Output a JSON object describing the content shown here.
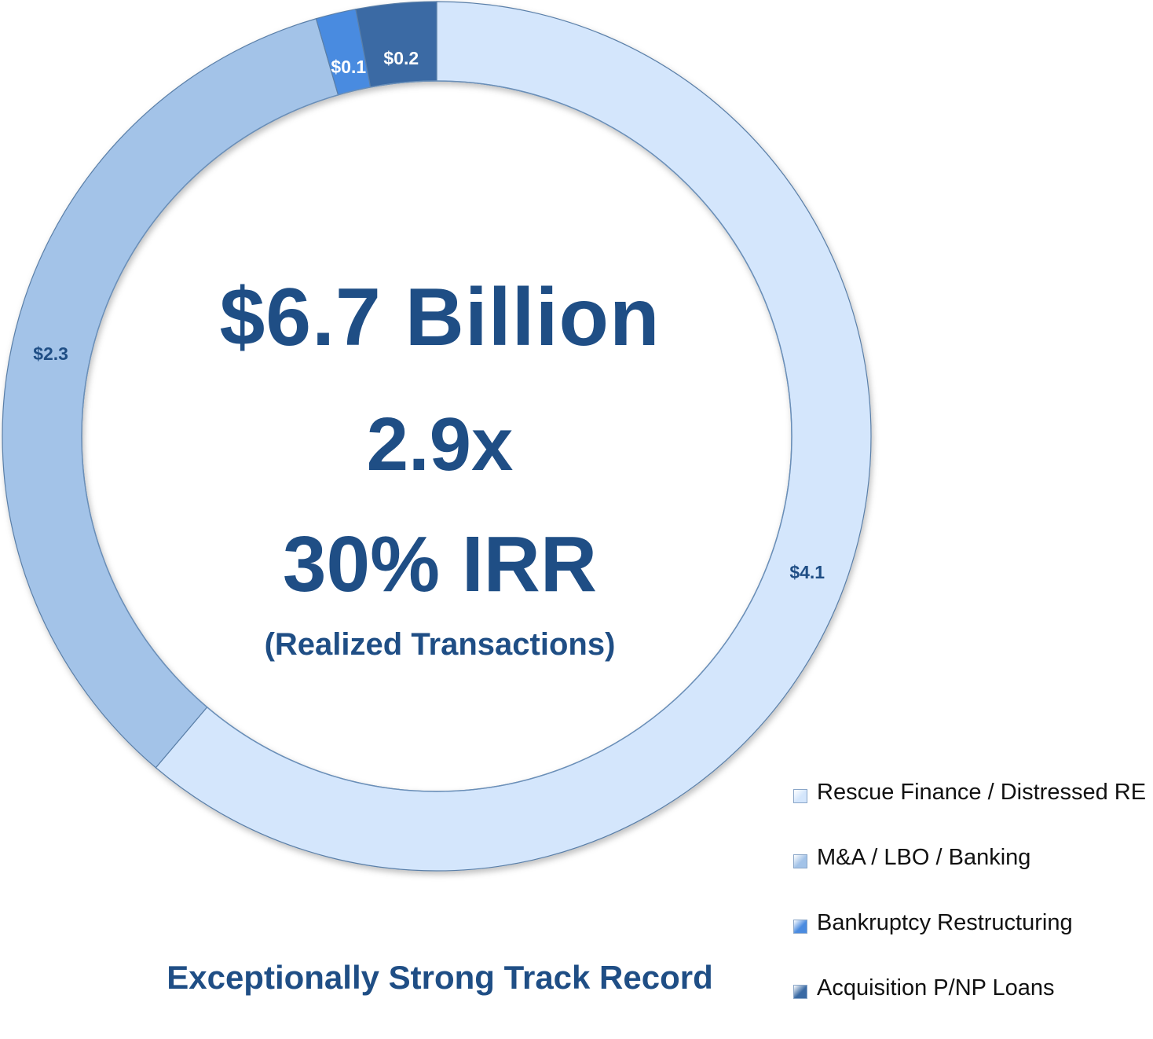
{
  "chart_data": {
    "type": "pie",
    "variant": "donut",
    "title": "",
    "categories": [
      "Rescue Finance / Distressed RE",
      "M&A / LBO / Banking",
      "Bankruptcy Restructuring",
      "Acquisition P/NP Loans"
    ],
    "values": [
      4.1,
      2.3,
      0.1,
      0.2
    ],
    "data_labels": [
      "$4.1",
      "$2.3",
      "$0.1",
      "$0.2"
    ],
    "colors": [
      "#d4e6fc",
      "#a3c3e8",
      "#4a8be0",
      "#3a6aa4"
    ],
    "data_label_colors": [
      "#1f4e85",
      "#1f4e85",
      "#ffffff",
      "#ffffff"
    ],
    "legend_position": "bottom-right",
    "grid": false
  },
  "center": {
    "total": "$6.7 Billion",
    "multiple": "2.9x",
    "irr": "30% IRR",
    "note": "(Realized Transactions)"
  },
  "footer": {
    "caption": "Exceptionally Strong Track Record"
  },
  "legend": {
    "items": [
      {
        "label": "Rescue Finance / Distressed RE",
        "color": "#d4e6fc"
      },
      {
        "label": "M&A / LBO / Banking",
        "color": "#a3c3e8"
      },
      {
        "label": "Bankruptcy Restructuring",
        "color": "#4a8be0"
      },
      {
        "label": "Acquisition P/NP Loans",
        "color": "#3a6aa4"
      }
    ]
  }
}
